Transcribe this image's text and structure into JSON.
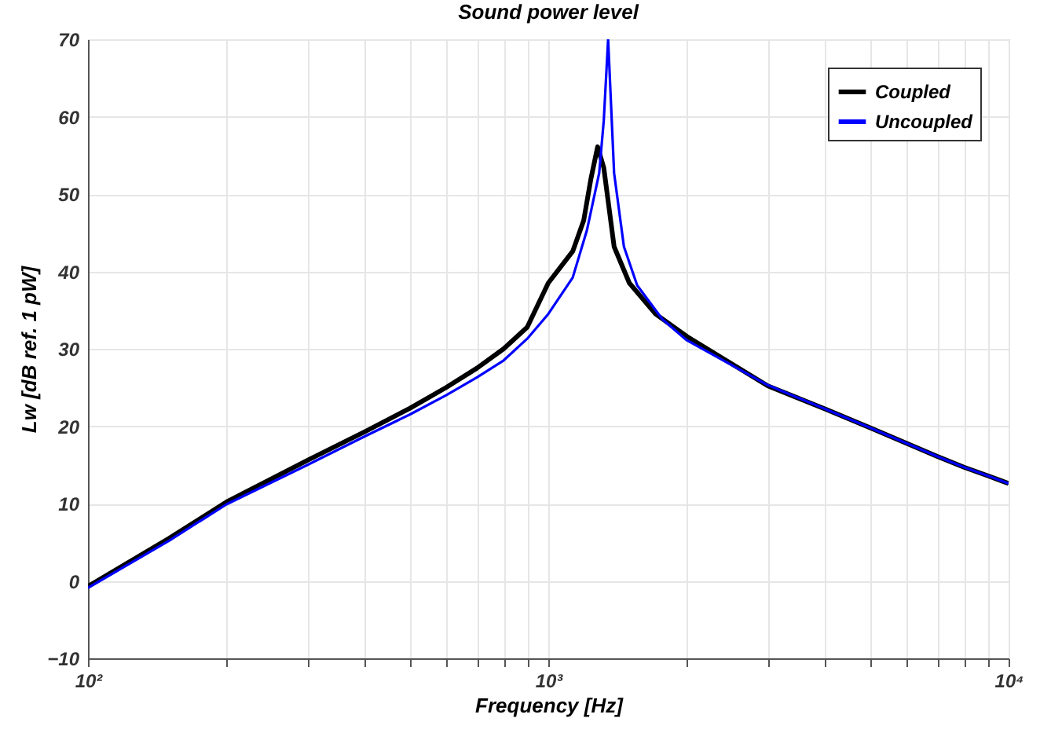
{
  "chart_data": {
    "type": "line",
    "title": "Sound power level",
    "xlabel": "Frequency [Hz]",
    "ylabel": "Lw [dB ref. 1 pW]",
    "log": "x",
    "grid": true,
    "legend": "top right",
    "line_style": "solid",
    "marker": "none",
    "xlim": [
      100,
      10000
    ],
    "ylim": [
      -10,
      70
    ],
    "xticks": [
      {
        "value": 100,
        "label": "10²"
      },
      {
        "value": 200,
        "label": null
      },
      {
        "value": 300,
        "label": null
      },
      {
        "value": 400,
        "label": null
      },
      {
        "value": 500,
        "label": null
      },
      {
        "value": 600,
        "label": null
      },
      {
        "value": 700,
        "label": null
      },
      {
        "value": 800,
        "label": null
      },
      {
        "value": 900,
        "label": null
      },
      {
        "value": 1000,
        "label": "10³"
      },
      {
        "value": 2000,
        "label": null
      },
      {
        "value": 3000,
        "label": null
      },
      {
        "value": 4000,
        "label": null
      },
      {
        "value": 5000,
        "label": null
      },
      {
        "value": 6000,
        "label": null
      },
      {
        "value": 7000,
        "label": null
      },
      {
        "value": 8000,
        "label": null
      },
      {
        "value": 9000,
        "label": null
      },
      {
        "value": 10000,
        "label": "10⁴"
      }
    ],
    "yticks": [
      -10,
      0,
      10,
      20,
      30,
      40,
      50,
      60,
      70
    ],
    "series": [
      {
        "name": "Coupled",
        "color": "#000000",
        "x": [
          100,
          150,
          200,
          300,
          400,
          500,
          600,
          700,
          800,
          900,
          1000,
          1130,
          1194,
          1238,
          1280,
          1320,
          1390,
          1500,
          1710,
          2000,
          3000,
          4000,
          5000,
          6000,
          7000,
          8000,
          9000,
          10000
        ],
        "values": [
          -0.7,
          5.5,
          10.2,
          15.6,
          19.3,
          22.3,
          25,
          27.5,
          30,
          32.8,
          38.5,
          42.6,
          46.6,
          52,
          56.1,
          53.4,
          43.2,
          38.5,
          34.5,
          31.6,
          25.2,
          22.2,
          19.8,
          17.8,
          16.1,
          14.7,
          13.6,
          12.6
        ]
      },
      {
        "name": "Uncoupled",
        "color": "#0000ff",
        "x": [
          100,
          150,
          200,
          300,
          400,
          500,
          600,
          700,
          800,
          900,
          1000,
          1130,
          1213,
          1290,
          1320,
          1349,
          1390,
          1460,
          1560,
          1770,
          2000,
          3000,
          4000,
          5000,
          6000,
          7000,
          8000,
          9000,
          10000
        ],
        "values": [
          -0.9,
          5.2,
          9.9,
          15,
          18.7,
          21.5,
          24,
          26.3,
          28.5,
          31.3,
          34.5,
          39.2,
          45.3,
          52.7,
          59.5,
          70,
          52.7,
          43.2,
          38.2,
          33.8,
          31.1,
          25.3,
          22.2,
          19.8,
          17.8,
          16.1,
          14.7,
          13.6,
          12.6
        ]
      }
    ]
  }
}
